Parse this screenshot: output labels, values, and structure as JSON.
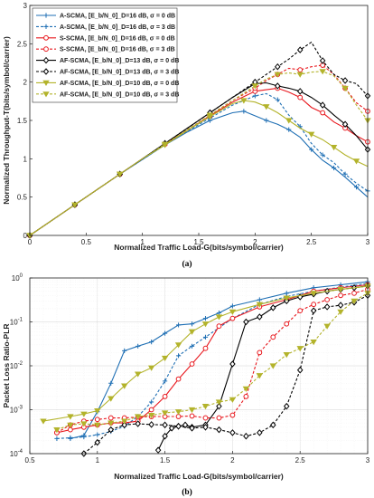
{
  "series_styles": [
    {
      "name": "A-SCMA, [E_b/N_0]_D=16 dB, σ = 0 dB",
      "color": "#1f6fb4",
      "dash": "solid",
      "marker": "plus"
    },
    {
      "name": "A-SCMA, [E_b/N_0]_D=16 dB, σ = 3 dB",
      "color": "#1f6fb4",
      "dash": "dashed",
      "marker": "plus"
    },
    {
      "name": "S-SCMA, [E_b/N_0]_D=16 dB, σ = 0 dB",
      "color": "#e8181e",
      "dash": "solid",
      "marker": "circle"
    },
    {
      "name": "S-SCMA, [E_b/N_0]_D=16 dB, σ = 3 dB",
      "color": "#e8181e",
      "dash": "dashed",
      "marker": "circle"
    },
    {
      "name": "AF-SCMA, [E_b/N_0]_D=13 dB, σ = 0 dB",
      "color": "#000000",
      "dash": "solid",
      "marker": "diamond"
    },
    {
      "name": "AF-SCMA, [E_b/N_0]_D=13 dB, σ = 3 dB",
      "color": "#000000",
      "dash": "dashed",
      "marker": "diamond"
    },
    {
      "name": "AF-SCMA, [E_b/N_0]_D=10 dB, σ = 0 dB",
      "color": "#b3b32b",
      "dash": "solid",
      "marker": "triangle-down"
    },
    {
      "name": "AF-SCMA, [E_b/N_0]_D=10 dB, σ = 3 dB",
      "color": "#b3b32b",
      "dash": "dashed",
      "marker": "triangle-down"
    }
  ],
  "chart_data": [
    {
      "type": "line",
      "caption": "(a)",
      "xlabel": "Normalized Traffic Load-G(bits/symbol/carrier)",
      "ylabel": "Normalized Throughput-T(bits/symbol/carrier)",
      "xlim": [
        0,
        3
      ],
      "ylim": [
        0,
        3
      ],
      "xticks": [
        "0",
        "0.5",
        "1",
        "1.5",
        "2",
        "2.5",
        "3"
      ],
      "yticks": [
        "0",
        "0.5",
        "1",
        "1.5",
        "2",
        "2.5",
        "3"
      ],
      "grid": false,
      "legend_position": "top-left",
      "series": [
        {
          "name": "A-SCMA, [E_b/N_0]_D=16 dB, σ = 0 dB",
          "x": [
            0,
            0.2,
            0.4,
            0.6,
            0.8,
            1.0,
            1.2,
            1.4,
            1.6,
            1.8,
            1.9,
            2.0,
            2.1,
            2.2,
            2.3,
            2.4,
            2.5,
            2.6,
            2.7,
            2.8,
            2.9,
            3.0
          ],
          "y": [
            0,
            0.2,
            0.4,
            0.6,
            0.8,
            0.99,
            1.18,
            1.35,
            1.5,
            1.6,
            1.62,
            1.56,
            1.5,
            1.45,
            1.38,
            1.28,
            1.12,
            0.98,
            0.88,
            0.76,
            0.63,
            0.5
          ]
        },
        {
          "name": "A-SCMA, [E_b/N_0]_D=16 dB, σ = 3 dB",
          "x": [
            0,
            0.2,
            0.4,
            0.6,
            0.8,
            1.0,
            1.2,
            1.4,
            1.6,
            1.8,
            2.0,
            2.1,
            2.2,
            2.3,
            2.4,
            2.5,
            2.6,
            2.7,
            2.8,
            2.9,
            3.0
          ],
          "y": [
            0,
            0.2,
            0.4,
            0.6,
            0.8,
            0.99,
            1.18,
            1.36,
            1.53,
            1.7,
            1.82,
            1.85,
            1.77,
            1.57,
            1.42,
            1.2,
            1.05,
            0.95,
            0.8,
            0.68,
            0.58
          ]
        },
        {
          "name": "S-SCMA, [E_b/N_0]_D=16 dB, σ = 0 dB",
          "x": [
            0,
            0.2,
            0.4,
            0.6,
            0.8,
            1.0,
            1.2,
            1.4,
            1.6,
            1.8,
            2.0,
            2.1,
            2.2,
            2.3,
            2.4,
            2.5,
            2.6,
            2.7,
            2.8,
            2.9,
            3.0
          ],
          "y": [
            0,
            0.2,
            0.4,
            0.6,
            0.8,
            1.0,
            1.19,
            1.37,
            1.56,
            1.74,
            1.88,
            1.9,
            1.92,
            1.87,
            1.8,
            1.67,
            1.6,
            1.48,
            1.4,
            1.3,
            1.22
          ]
        },
        {
          "name": "S-SCMA, [E_b/N_0]_D=16 dB, σ = 3 dB",
          "x": [
            0,
            0.2,
            0.4,
            0.6,
            0.8,
            1.0,
            1.2,
            1.4,
            1.6,
            1.8,
            2.0,
            2.1,
            2.2,
            2.3,
            2.4,
            2.5,
            2.6,
            2.7,
            2.8,
            2.9,
            3.0
          ],
          "y": [
            0,
            0.2,
            0.4,
            0.6,
            0.8,
            1.0,
            1.19,
            1.38,
            1.57,
            1.76,
            1.92,
            2.02,
            2.1,
            2.18,
            2.16,
            2.2,
            2.22,
            2.1,
            1.92,
            1.73,
            1.62
          ]
        },
        {
          "name": "AF-SCMA, [E_b/N_0]_D=13 dB, σ = 0 dB",
          "x": [
            0,
            0.2,
            0.4,
            0.6,
            0.8,
            1.0,
            1.2,
            1.4,
            1.6,
            1.8,
            2.0,
            2.1,
            2.2,
            2.3,
            2.4,
            2.5,
            2.6,
            2.7,
            2.8,
            2.9,
            3.0
          ],
          "y": [
            0,
            0.2,
            0.4,
            0.6,
            0.8,
            1.0,
            1.2,
            1.4,
            1.6,
            1.8,
            1.98,
            1.99,
            1.95,
            1.92,
            1.88,
            1.8,
            1.7,
            1.57,
            1.45,
            1.3,
            1.12
          ]
        },
        {
          "name": "AF-SCMA, [E_b/N_0]_D=13 dB, σ = 3 dB",
          "x": [
            0,
            0.2,
            0.4,
            0.6,
            0.8,
            1.0,
            1.2,
            1.4,
            1.6,
            1.8,
            2.0,
            2.1,
            2.2,
            2.3,
            2.4,
            2.5,
            2.6,
            2.7,
            2.8,
            2.9,
            3.0
          ],
          "y": [
            0,
            0.2,
            0.4,
            0.6,
            0.8,
            1.0,
            1.2,
            1.4,
            1.6,
            1.8,
            2.0,
            2.1,
            2.2,
            2.3,
            2.42,
            2.52,
            2.28,
            2.1,
            2.02,
            1.98,
            1.82
          ]
        },
        {
          "name": "AF-SCMA, [E_b/N_0]_D=10 dB, σ = 0 dB",
          "x": [
            0,
            0.2,
            0.4,
            0.6,
            0.8,
            1.0,
            1.2,
            1.4,
            1.6,
            1.8,
            1.9,
            2.0,
            2.1,
            2.2,
            2.3,
            2.4,
            2.5,
            2.6,
            2.7,
            2.8,
            2.9,
            3.0
          ],
          "y": [
            0,
            0.2,
            0.4,
            0.6,
            0.8,
            1.0,
            1.18,
            1.37,
            1.55,
            1.72,
            1.76,
            1.74,
            1.68,
            1.6,
            1.5,
            1.4,
            1.32,
            1.25,
            1.15,
            1.05,
            0.97,
            0.9
          ]
        },
        {
          "name": "AF-SCMA, [E_b/N_0]_D=10 dB, σ = 3 dB",
          "x": [
            0,
            0.2,
            0.4,
            0.6,
            0.8,
            1.0,
            1.2,
            1.4,
            1.6,
            1.8,
            2.0,
            2.1,
            2.2,
            2.3,
            2.4,
            2.5,
            2.6,
            2.7,
            2.8,
            2.9,
            3.0
          ],
          "y": [
            0,
            0.2,
            0.4,
            0.6,
            0.8,
            1.0,
            1.19,
            1.38,
            1.57,
            1.76,
            1.95,
            2.04,
            2.1,
            2.12,
            2.1,
            2.13,
            2.14,
            2.08,
            1.92,
            1.7,
            1.5
          ]
        }
      ]
    },
    {
      "type": "line",
      "caption": "(b)",
      "xlabel": "Normalized Traffic Load-G(bits/symbol/carrier)",
      "ylabel": "Packet Loss Ratio-PLR",
      "xlim": [
        0.5,
        3
      ],
      "ylim": [
        0.0001,
        1
      ],
      "yscale": "log",
      "xticks": [
        "0.5",
        "1",
        "1.5",
        "2",
        "2.5",
        "3"
      ],
      "yticks": [
        "10^-4",
        "10^-3",
        "10^-2",
        "10^-1",
        "10^0"
      ],
      "grid": true,
      "series": [
        {
          "name": "A-SCMA, [E_b/N_0]_D=16 dB, σ = 0 dB",
          "x": [
            0.8,
            0.9,
            1.0,
            1.1,
            1.2,
            1.3,
            1.4,
            1.5,
            1.6,
            1.7,
            1.8,
            1.9,
            2.0,
            2.2,
            2.4,
            2.6,
            2.8,
            3.0
          ],
          "y": [
            0.00022,
            0.00026,
            0.0009,
            0.004,
            0.022,
            0.028,
            0.035,
            0.055,
            0.085,
            0.09,
            0.12,
            0.16,
            0.23,
            0.32,
            0.45,
            0.6,
            0.7,
            0.82
          ]
        },
        {
          "name": "A-SCMA, [E_b/N_0]_D=16 dB, σ = 3 dB",
          "x": [
            0.7,
            0.8,
            0.9,
            1.0,
            1.1,
            1.2,
            1.3,
            1.4,
            1.5,
            1.6,
            1.7,
            1.8,
            2.0,
            2.2,
            2.4,
            2.6,
            2.8,
            3.0
          ],
          "y": [
            0.00022,
            0.00023,
            0.00024,
            0.00027,
            0.00032,
            0.00042,
            0.0007,
            0.0015,
            0.0045,
            0.017,
            0.028,
            0.045,
            0.12,
            0.25,
            0.38,
            0.5,
            0.62,
            0.75
          ]
        },
        {
          "name": "S-SCMA, [E_b/N_0]_D=16 dB, σ = 0 dB",
          "x": [
            0.7,
            0.8,
            0.9,
            1.0,
            1.1,
            1.2,
            1.3,
            1.4,
            1.5,
            1.6,
            1.7,
            1.8,
            1.9,
            2.0,
            2.2,
            2.4,
            2.6,
            2.8,
            3.0
          ],
          "y": [
            0.0003,
            0.00035,
            0.0004,
            0.00045,
            0.0005,
            0.0005,
            0.00055,
            0.001,
            0.002,
            0.005,
            0.011,
            0.025,
            0.08,
            0.12,
            0.22,
            0.32,
            0.5,
            0.6,
            0.7
          ]
        },
        {
          "name": "S-SCMA, [E_b/N_0]_D=16 dB, σ = 3 dB",
          "x": [
            0.7,
            0.8,
            0.9,
            1.0,
            1.1,
            1.2,
            1.3,
            1.4,
            1.5,
            1.6,
            1.7,
            1.8,
            1.9,
            2.0,
            2.1,
            2.2,
            2.3,
            2.4,
            2.5,
            2.6,
            2.7,
            2.8,
            2.9,
            3.0
          ],
          "y": [
            0.0003,
            0.00045,
            0.00055,
            0.0006,
            0.00065,
            0.00065,
            0.00068,
            0.0007,
            0.0007,
            0.0007,
            0.00072,
            0.00065,
            0.00065,
            0.00075,
            0.002,
            0.02,
            0.045,
            0.09,
            0.18,
            0.25,
            0.32,
            0.4,
            0.45,
            0.55
          ]
        },
        {
          "name": "AF-SCMA, [E_b/N_0]_D=13 dB, σ = 0 dB",
          "x": [
            1.45,
            1.5,
            1.55,
            1.6,
            1.65,
            1.7,
            1.8,
            1.9,
            2.0,
            2.1,
            2.2,
            2.3,
            2.4,
            2.5,
            2.6,
            2.7,
            2.8,
            2.9,
            3.0
          ],
          "y": [
            0.00012,
            0.00025,
            0.00038,
            0.00042,
            0.00045,
            0.0004,
            0.00045,
            0.0012,
            0.011,
            0.1,
            0.13,
            0.21,
            0.3,
            0.37,
            0.43,
            0.5,
            0.55,
            0.6,
            0.66
          ]
        },
        {
          "name": "AF-SCMA, [E_b/N_0]_D=13 dB, σ = 3 dB",
          "x": [
            0.9,
            1.0,
            1.1,
            1.2,
            1.3,
            1.4,
            1.5,
            1.6,
            1.7,
            1.8,
            1.9,
            2.0,
            2.1,
            2.2,
            2.3,
            2.4,
            2.5,
            2.6,
            2.7,
            2.8,
            2.9,
            3.0
          ],
          "y": [
            0.0001,
            0.00018,
            0.00035,
            0.00045,
            0.00048,
            0.00046,
            0.00045,
            0.00042,
            0.00038,
            0.0004,
            0.00035,
            0.0003,
            0.00025,
            0.0003,
            0.00045,
            0.0012,
            0.008,
            0.18,
            0.22,
            0.24,
            0.28,
            0.4
          ]
        },
        {
          "name": "AF-SCMA, [E_b/N_0]_D=10 dB, σ = 0 dB",
          "x": [
            0.6,
            0.8,
            0.9,
            1.0,
            1.1,
            1.2,
            1.3,
            1.4,
            1.5,
            1.6,
            1.7,
            1.8,
            1.9,
            2.0,
            2.2,
            2.4,
            2.6,
            2.8,
            3.0
          ],
          "y": [
            0.00055,
            0.0007,
            0.0008,
            0.00095,
            0.0018,
            0.0035,
            0.0065,
            0.009,
            0.015,
            0.03,
            0.06,
            0.09,
            0.13,
            0.17,
            0.25,
            0.35,
            0.45,
            0.55,
            0.65
          ]
        },
        {
          "name": "AF-SCMA, [E_b/N_0]_D=10 dB, σ = 3 dB",
          "x": [
            0.7,
            0.8,
            0.9,
            1.0,
            1.1,
            1.2,
            1.3,
            1.4,
            1.5,
            1.6,
            1.7,
            1.8,
            1.9,
            2.0,
            2.1,
            2.2,
            2.3,
            2.4,
            2.5,
            2.6,
            2.7,
            2.8,
            2.9,
            3.0
          ],
          "y": [
            0.00035,
            0.00045,
            0.00048,
            0.00045,
            0.0005,
            0.00055,
            0.0007,
            0.00075,
            0.00085,
            0.0009,
            0.001,
            0.0012,
            0.0015,
            0.0017,
            0.003,
            0.006,
            0.01,
            0.018,
            0.025,
            0.035,
            0.08,
            0.17,
            0.3,
            0.45
          ]
        }
      ]
    }
  ]
}
